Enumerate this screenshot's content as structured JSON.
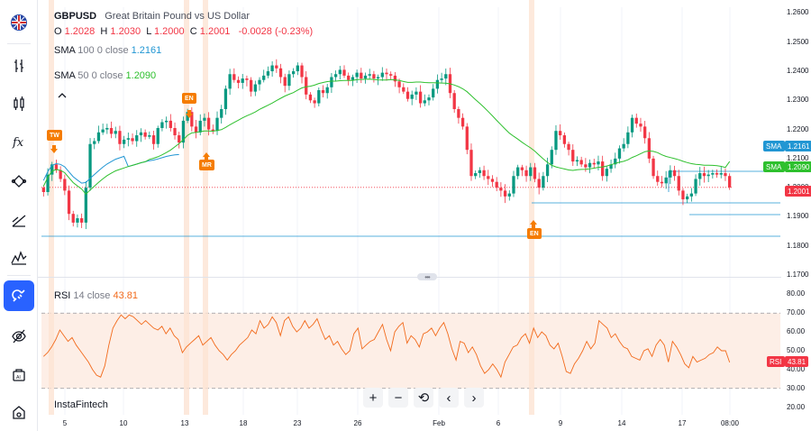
{
  "legend": {
    "symbol": "GBPUSD",
    "description": "Great Britain Pound vs US Dollar",
    "o_label": "O",
    "o": "1.2028",
    "h_label": "H",
    "h": "1.2030",
    "l_label": "L",
    "l": "1.2000",
    "c_label": "C",
    "c": "1.2001",
    "change": "-0.0028 (-0.23%)",
    "sma100_name": "SMA",
    "sma100_params": "100 0 close",
    "sma100_value": "1.2161",
    "sma50_name": "SMA",
    "sma50_params": "50 0 close",
    "sma50_value": "1.2090",
    "rsi_name": "RSI",
    "rsi_params": "14 close",
    "rsi_value": "43.81"
  },
  "price_axis": [
    "1.2600",
    "1.2500",
    "1.2400",
    "1.2300",
    "1.2200",
    "1.2100",
    "1.2000",
    "1.1900",
    "1.1800",
    "1.1700"
  ],
  "rsi_axis": [
    "80.00",
    "70.00",
    "60.00",
    "50.00",
    "40.00",
    "30.00",
    "20.00"
  ],
  "time_axis": [
    "5",
    "10",
    "13",
    "18",
    "23",
    "26",
    "Feb",
    "6",
    "9",
    "14",
    "17",
    "08:00"
  ],
  "tags": {
    "sma100_tag_label": "SMA",
    "sma100_tag_value": "1.2161",
    "sma50_tag_label": "SMA",
    "sma50_tag_value": "1.2090",
    "price_tag_value": "1.2001",
    "rsi_tag_label": "RSI",
    "rsi_tag_value": "43.81"
  },
  "events": {
    "tw": "TW",
    "en1": "EN",
    "mr": "MR",
    "en2": "EN"
  },
  "branding": {
    "logo": "InstaFintech"
  },
  "controls": {
    "zoom_in": "+",
    "zoom_out": "−",
    "reset": "⟲",
    "prev": "‹",
    "next": "›"
  },
  "colors": {
    "up": "#089981",
    "down": "#f23645",
    "sma100": "#2196d3",
    "sma50": "#2ec02e",
    "rsi": "#f26a1b",
    "accent": "#2962ff",
    "event": "#f57c00"
  },
  "icons": [
    "flag-uk-icon",
    "bar-style-icon",
    "candle-icon",
    "indicators-icon",
    "drawing-icon",
    "trend-icon",
    "patterns-icon",
    "magnet-icon",
    "hide-drawings-icon",
    "screenshot-icon",
    "home-icon"
  ],
  "chart_data": {
    "type": "candlestick",
    "price_range": [
      1.17,
      1.262
    ],
    "rsi_range": [
      16,
      84
    ],
    "rsi_levels": [
      70,
      30
    ],
    "series": [
      {
        "name": "SMA",
        "period": 100,
        "last": 1.2161
      },
      {
        "name": "SMA",
        "period": 50,
        "last": 1.209
      },
      {
        "name": "RSI",
        "period": 14,
        "last": 43.81
      }
    ],
    "closes": [
      1.1985,
      1.2045,
      1.208,
      1.206,
      1.203,
      1.199,
      1.191,
      1.188,
      1.1895,
      1.188,
      1.2,
      1.215,
      1.216,
      1.219,
      1.22,
      1.2205,
      1.2185,
      1.2195,
      1.215,
      1.2165,
      1.217,
      1.216,
      1.218,
      1.219,
      1.2175,
      1.218,
      1.215,
      1.2205,
      1.2225,
      1.223,
      1.2205,
      1.218,
      1.2155,
      1.223,
      1.226,
      1.221,
      1.219,
      1.223,
      1.224,
      1.22,
      1.2195,
      1.224,
      1.227,
      1.234,
      1.239,
      1.237,
      1.236,
      1.2375,
      1.237,
      1.233,
      1.2355,
      1.237,
      1.2385,
      1.24,
      1.242,
      1.241,
      1.238,
      1.235,
      1.239,
      1.24,
      1.242,
      1.238,
      1.232,
      1.23,
      1.229,
      1.2335,
      1.2325,
      1.2345,
      1.238,
      1.239,
      1.2405,
      1.2385,
      1.237,
      1.238,
      1.2395,
      1.2375,
      1.2385,
      1.239,
      1.2375,
      1.238,
      1.2395,
      1.239,
      1.2385,
      1.2365,
      1.2345,
      1.233,
      1.2305,
      1.232,
      1.233,
      1.229,
      1.23,
      1.231,
      1.234,
      1.237,
      1.2375,
      1.239,
      1.2325,
      1.227,
      1.224,
      1.221,
      1.213,
      1.204,
      1.205,
      1.206,
      1.204,
      1.203,
      1.202,
      1.2,
      1.199,
      1.197,
      1.198,
      1.204,
      1.207,
      1.206,
      1.204,
      1.207,
      1.203,
      1.2,
      1.204,
      1.208,
      1.213,
      1.2195,
      1.218,
      1.215,
      1.213,
      1.209,
      1.2095,
      1.208,
      1.207,
      1.2085,
      1.208,
      1.209,
      1.204,
      1.2065,
      1.208,
      1.21,
      1.2135,
      1.215,
      1.219,
      1.224,
      1.222,
      1.221,
      1.217,
      1.21,
      1.204,
      1.202,
      1.2015,
      1.2035,
      1.206,
      1.204,
      1.199,
      1.196,
      1.197,
      1.198,
      1.203,
      1.205,
      1.204,
      1.2045,
      1.205,
      1.2045,
      1.205,
      1.204,
      1.2001
    ],
    "rsi": [
      47,
      49,
      52,
      56,
      61,
      58,
      55,
      57,
      53,
      50,
      47,
      44,
      40,
      37,
      36,
      42,
      53,
      62,
      66,
      69,
      67,
      69,
      68,
      66,
      64,
      66,
      64,
      62,
      61,
      63,
      59,
      62,
      58,
      56,
      49,
      52,
      54,
      56,
      58,
      53,
      55,
      57,
      53,
      50,
      48,
      45,
      48,
      50,
      53,
      55,
      57,
      61,
      59,
      66,
      62,
      64,
      68,
      65,
      58,
      66,
      68,
      63,
      60,
      62,
      66,
      62,
      64,
      67,
      61,
      56,
      58,
      53,
      55,
      51,
      48,
      50,
      59,
      62,
      51,
      53,
      55,
      56,
      60,
      64,
      56,
      50,
      60,
      63,
      65,
      54,
      58,
      56,
      52,
      59,
      60,
      62,
      58,
      62,
      65,
      59,
      51,
      45,
      55,
      54,
      49,
      52,
      48,
      42,
      38,
      40,
      43,
      40,
      36,
      44,
      48,
      52,
      53,
      57,
      59,
      54,
      62,
      57,
      60,
      58,
      53,
      51,
      54,
      47,
      39,
      38,
      43,
      46,
      50,
      55,
      51,
      54,
      66,
      64,
      62,
      57,
      59,
      55,
      52,
      51,
      47,
      46,
      45,
      50,
      51,
      47,
      53,
      56,
      53,
      44,
      55,
      52,
      48,
      43,
      41,
      47,
      44,
      45,
      46,
      48,
      49,
      52,
      50,
      50,
      43.81
    ]
  }
}
